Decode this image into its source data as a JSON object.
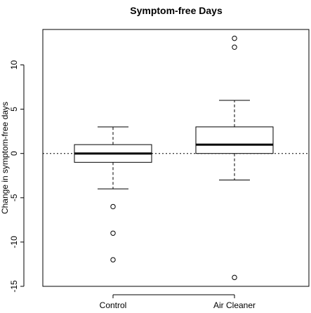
{
  "chart_data": {
    "type": "boxplot",
    "title": "Symptom-free Days",
    "xlabel": "",
    "ylabel": "Change in symptom-free days",
    "ylim": [
      -15,
      14
    ],
    "yticks": [
      -15,
      -10,
      -5,
      0,
      5,
      10
    ],
    "categories": [
      "Control",
      "Air Cleaner"
    ],
    "boxes": [
      {
        "category": "Control",
        "whisker_low": -4,
        "q1": -1,
        "median": 0,
        "q3": 1,
        "whisker_high": 3,
        "outliers": [
          -6,
          -9,
          -12
        ]
      },
      {
        "category": "Air Cleaner",
        "whisker_low": -3,
        "q1": 0,
        "median": 1,
        "q3": 3,
        "whisker_high": 6,
        "outliers": [
          13,
          12,
          -14
        ]
      }
    ],
    "reference_line": {
      "y": 0,
      "style": "dotted"
    },
    "grid": false,
    "legend": "none"
  }
}
